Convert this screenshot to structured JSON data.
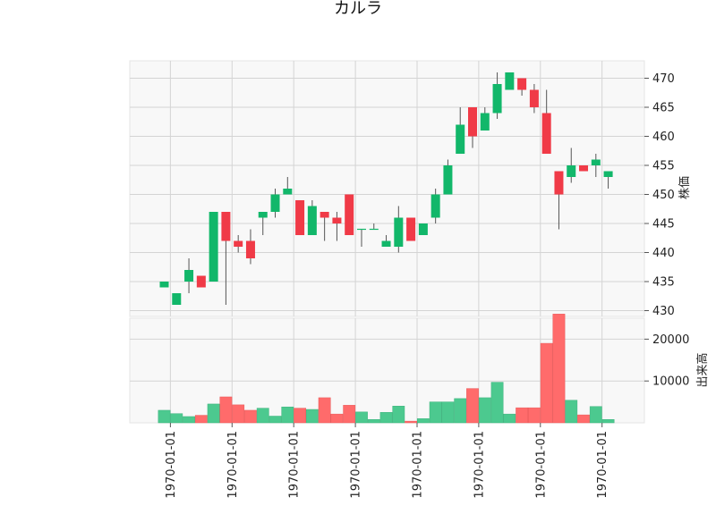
{
  "chart_data": {
    "type": "candlestick",
    "title": "カルラ",
    "y_price_label": "株価",
    "y_volume_label": "出来高",
    "price_ylim": [
      429,
      473
    ],
    "volume_ylim": [
      0,
      25000
    ],
    "price_ticks": [
      430,
      435,
      440,
      445,
      450,
      455,
      460,
      465,
      470
    ],
    "volume_ticks": [
      10000,
      20000
    ],
    "x_tick_labels": [
      "1970-01-01",
      "1970-01-01",
      "1970-01-01",
      "1970-01-01",
      "1970-01-01",
      "1970-01-01",
      "1970-01-01",
      "1970-01-01"
    ],
    "x_tick_positions": [
      0.5,
      5.5,
      10.5,
      15.5,
      20.5,
      25.5,
      30.5,
      35.5
    ],
    "grid": true,
    "up_color": "#12b76a",
    "down_color": "#f03a47",
    "up_volume_color": "#4cc98f",
    "down_volume_color": "#ff6b6b",
    "candles": [
      {
        "open": 434,
        "high": 435,
        "low": 434,
        "close": 435,
        "volume": 3000
      },
      {
        "open": 431,
        "high": 433,
        "low": 431,
        "close": 433,
        "volume": 2200
      },
      {
        "open": 435,
        "high": 439,
        "low": 433,
        "close": 437,
        "volume": 1500
      },
      {
        "open": 436,
        "high": 436,
        "low": 434,
        "close": 434,
        "volume": 1800
      },
      {
        "open": 435,
        "high": 447,
        "low": 435,
        "close": 447,
        "volume": 4500
      },
      {
        "open": 447,
        "high": 447,
        "low": 431,
        "close": 442,
        "volume": 6200
      },
      {
        "open": 442,
        "high": 443,
        "low": 440,
        "close": 441,
        "volume": 4300
      },
      {
        "open": 442,
        "high": 444,
        "low": 438,
        "close": 439,
        "volume": 3000
      },
      {
        "open": 446,
        "high": 447,
        "low": 443,
        "close": 447,
        "volume": 3500
      },
      {
        "open": 447,
        "high": 451,
        "low": 446,
        "close": 450,
        "volume": 1600
      },
      {
        "open": 450,
        "high": 453,
        "low": 450,
        "close": 451,
        "volume": 3800
      },
      {
        "open": 449,
        "high": 449,
        "low": 443,
        "close": 443,
        "volume": 3500
      },
      {
        "open": 443,
        "high": 449,
        "low": 443,
        "close": 448,
        "volume": 3200
      },
      {
        "open": 447,
        "high": 447,
        "low": 442,
        "close": 446,
        "volume": 6000
      },
      {
        "open": 446,
        "high": 447,
        "low": 442,
        "close": 445,
        "volume": 2100
      },
      {
        "open": 450,
        "high": 450,
        "low": 443,
        "close": 443,
        "volume": 4200
      },
      {
        "open": 444,
        "high": 444,
        "low": 441,
        "close": 444,
        "volume": 2600
      },
      {
        "open": 444,
        "high": 445,
        "low": 444,
        "close": 444,
        "volume": 800
      },
      {
        "open": 441,
        "high": 443,
        "low": 441,
        "close": 442,
        "volume": 2500
      },
      {
        "open": 441,
        "high": 448,
        "low": 440,
        "close": 446,
        "volume": 4000
      },
      {
        "open": 446,
        "high": 446,
        "low": 442,
        "close": 442,
        "volume": 400
      },
      {
        "open": 443,
        "high": 445,
        "low": 443,
        "close": 445,
        "volume": 1000
      },
      {
        "open": 446,
        "high": 451,
        "low": 445,
        "close": 450,
        "volume": 5000
      },
      {
        "open": 450,
        "high": 456,
        "low": 450,
        "close": 455,
        "volume": 5000
      },
      {
        "open": 457,
        "high": 465,
        "low": 457,
        "close": 462,
        "volume": 5800
      },
      {
        "open": 465,
        "high": 465,
        "low": 458,
        "close": 460,
        "volume": 8200
      },
      {
        "open": 461,
        "high": 465,
        "low": 461,
        "close": 464,
        "volume": 6000
      },
      {
        "open": 464,
        "high": 471,
        "low": 463,
        "close": 469,
        "volume": 9700
      },
      {
        "open": 468,
        "high": 471,
        "low": 468,
        "close": 471,
        "volume": 2100
      },
      {
        "open": 470,
        "high": 470,
        "low": 467,
        "close": 468,
        "volume": 3600
      },
      {
        "open": 468,
        "high": 469,
        "low": 464,
        "close": 465,
        "volume": 3600
      },
      {
        "open": 464,
        "high": 468,
        "low": 457,
        "close": 457,
        "volume": 19000
      },
      {
        "open": 454,
        "high": 454,
        "low": 444,
        "close": 450,
        "volume": 26000
      },
      {
        "open": 453,
        "high": 458,
        "low": 452,
        "close": 455,
        "volume": 5400
      },
      {
        "open": 455,
        "high": 455,
        "low": 454,
        "close": 454,
        "volume": 1900
      },
      {
        "open": 455,
        "high": 457,
        "low": 453,
        "close": 456,
        "volume": 3900
      },
      {
        "open": 453,
        "high": 454,
        "low": 451,
        "close": 454,
        "volume": 800
      }
    ]
  }
}
